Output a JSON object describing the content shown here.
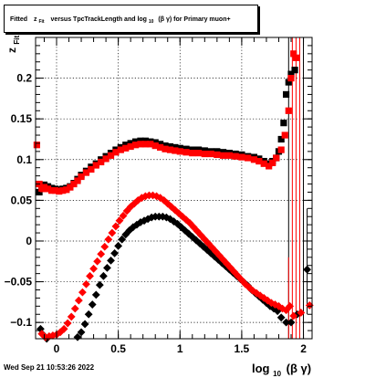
{
  "footer": {
    "datetime": "Wed Sep 21 10:53:26 2022"
  },
  "chart_data": {
    "type": "scatter",
    "title": {
      "prefix": "Fitted",
      "var": "z",
      "var_sub": "Fit",
      "middle": "versus TpcTrackLength and log",
      "log_sub": "10",
      "expr": "(β γ) for Primary muon+"
    },
    "ylabel": {
      "main": "z",
      "sub": "Fit"
    },
    "xlabel": {
      "main": "log",
      "sub": "10",
      "expr": "(β γ)"
    },
    "xlim": [
      -0.17,
      2.07
    ],
    "ylim": [
      -0.12,
      0.25
    ],
    "x_ticks": [
      {
        "value": 0,
        "label": "0"
      },
      {
        "value": 0.5,
        "label": "0.5"
      },
      {
        "value": 1,
        "label": "1"
      },
      {
        "value": 1.5,
        "label": "1.5"
      },
      {
        "value": 2,
        "label": "2"
      }
    ],
    "y_ticks": [
      {
        "value": -0.1,
        "label": "−0.1"
      },
      {
        "value": -0.05,
        "label": "−0.05"
      },
      {
        "value": 0,
        "label": "0"
      },
      {
        "value": 0.05,
        "label": "0.05"
      },
      {
        "value": 0.1,
        "label": "0.1"
      },
      {
        "value": 0.15,
        "label": "0.15"
      },
      {
        "value": 0.2,
        "label": "0.2"
      }
    ],
    "grid": true,
    "colors": {
      "black_series": "#000000",
      "red_series": "#ff0000"
    },
    "series": [
      {
        "color": "#000000",
        "marker": "square",
        "points": [
          [
            -0.14,
            0.06
          ],
          [
            -0.12,
            0.066
          ],
          [
            -0.1,
            0.069
          ],
          [
            -0.07,
            0.067
          ],
          [
            -0.04,
            0.065
          ],
          [
            -0.01,
            0.064
          ],
          [
            0.02,
            0.063
          ],
          [
            0.05,
            0.064
          ],
          [
            0.08,
            0.065
          ],
          [
            0.11,
            0.067
          ],
          [
            0.14,
            0.071
          ],
          [
            0.17,
            0.076
          ],
          [
            0.2,
            0.081
          ],
          [
            0.24,
            0.086
          ],
          [
            0.28,
            0.091
          ],
          [
            0.32,
            0.095
          ],
          [
            0.36,
            0.1
          ],
          [
            0.4,
            0.104
          ],
          [
            0.44,
            0.108
          ],
          [
            0.48,
            0.112
          ],
          [
            0.52,
            0.115
          ],
          [
            0.56,
            0.118
          ],
          [
            0.6,
            0.12
          ],
          [
            0.64,
            0.122
          ],
          [
            0.68,
            0.123
          ],
          [
            0.72,
            0.123
          ],
          [
            0.76,
            0.122
          ],
          [
            0.8,
            0.121
          ],
          [
            0.84,
            0.119
          ],
          [
            0.88,
            0.117
          ],
          [
            0.92,
            0.116
          ],
          [
            0.96,
            0.115
          ],
          [
            1.0,
            0.114
          ],
          [
            1.05,
            0.113
          ],
          [
            1.1,
            0.112
          ],
          [
            1.15,
            0.112
          ],
          [
            1.2,
            0.111
          ],
          [
            1.25,
            0.11
          ],
          [
            1.3,
            0.11
          ],
          [
            1.35,
            0.109
          ],
          [
            1.4,
            0.108
          ],
          [
            1.45,
            0.107
          ],
          [
            1.5,
            0.106
          ],
          [
            1.55,
            0.104
          ],
          [
            1.6,
            0.103
          ],
          [
            1.64,
            0.101
          ],
          [
            1.68,
            0.098
          ],
          [
            1.72,
            0.095
          ],
          [
            1.75,
            0.098
          ],
          [
            1.78,
            0.102
          ],
          [
            1.8,
            0.11
          ],
          [
            1.82,
            0.125
          ],
          [
            1.84,
            0.145
          ],
          [
            1.86,
            0.18
          ],
          [
            1.88,
            0.195
          ],
          [
            1.9,
            0.205
          ],
          [
            1.93,
            0.21
          ]
        ]
      },
      {
        "color": "#000000",
        "marker": "diamond",
        "points": [
          [
            -0.13,
            -0.108
          ],
          [
            -0.11,
            -0.115
          ],
          [
            -0.08,
            -0.12
          ],
          [
            0.17,
            -0.118
          ],
          [
            0.2,
            -0.112
          ],
          [
            0.23,
            -0.102
          ],
          [
            0.26,
            -0.09
          ],
          [
            0.29,
            -0.078
          ],
          [
            0.32,
            -0.066
          ],
          [
            0.35,
            -0.054
          ],
          [
            0.38,
            -0.043
          ],
          [
            0.41,
            -0.033
          ],
          [
            0.44,
            -0.024
          ],
          [
            0.47,
            -0.015
          ],
          [
            0.5,
            -0.006
          ],
          [
            0.53,
            0.002
          ],
          [
            0.56,
            0.008
          ],
          [
            0.59,
            0.013
          ],
          [
            0.62,
            0.017
          ],
          [
            0.65,
            0.02
          ],
          [
            0.68,
            0.023
          ],
          [
            0.71,
            0.025
          ],
          [
            0.74,
            0.027
          ],
          [
            0.77,
            0.029
          ],
          [
            0.8,
            0.03
          ],
          [
            0.83,
            0.03
          ],
          [
            0.86,
            0.03
          ],
          [
            0.89,
            0.029
          ],
          [
            0.92,
            0.027
          ],
          [
            0.95,
            0.024
          ],
          [
            0.98,
            0.021
          ],
          [
            1.01,
            0.017
          ],
          [
            1.04,
            0.013
          ],
          [
            1.07,
            0.009
          ],
          [
            1.1,
            0.005
          ],
          [
            1.13,
            0.001
          ],
          [
            1.16,
            -0.003
          ],
          [
            1.19,
            -0.007
          ],
          [
            1.22,
            -0.011
          ],
          [
            1.25,
            -0.015
          ],
          [
            1.28,
            -0.019
          ],
          [
            1.31,
            -0.023
          ],
          [
            1.34,
            -0.027
          ],
          [
            1.37,
            -0.031
          ],
          [
            1.4,
            -0.035
          ],
          [
            1.43,
            -0.039
          ],
          [
            1.46,
            -0.043
          ],
          [
            1.49,
            -0.047
          ],
          [
            1.52,
            -0.051
          ],
          [
            1.55,
            -0.055
          ],
          [
            1.58,
            -0.06
          ],
          [
            1.61,
            -0.064
          ],
          [
            1.64,
            -0.068
          ],
          [
            1.67,
            -0.072
          ],
          [
            1.7,
            -0.076
          ],
          [
            1.73,
            -0.08
          ],
          [
            1.76,
            -0.083
          ],
          [
            1.79,
            -0.086
          ],
          [
            1.82,
            -0.094
          ],
          [
            1.86,
            -0.1
          ],
          [
            1.9,
            -0.1
          ],
          [
            1.95,
            -0.09
          ],
          [
            2.03,
            -0.035
          ]
        ]
      },
      {
        "color": "#ff0000",
        "marker": "square",
        "points": [
          [
            -0.16,
            0.118
          ],
          [
            -0.14,
            0.07
          ],
          [
            -0.12,
            0.064
          ],
          [
            -0.1,
            0.066
          ],
          [
            -0.07,
            0.064
          ],
          [
            -0.04,
            0.062
          ],
          [
            -0.01,
            0.062
          ],
          [
            0.02,
            0.061
          ],
          [
            0.05,
            0.062
          ],
          [
            0.08,
            0.063
          ],
          [
            0.11,
            0.066
          ],
          [
            0.14,
            0.07
          ],
          [
            0.17,
            0.074
          ],
          [
            0.2,
            0.079
          ],
          [
            0.24,
            0.084
          ],
          [
            0.28,
            0.088
          ],
          [
            0.32,
            0.093
          ],
          [
            0.36,
            0.097
          ],
          [
            0.4,
            0.101
          ],
          [
            0.44,
            0.105
          ],
          [
            0.48,
            0.109
          ],
          [
            0.52,
            0.112
          ],
          [
            0.56,
            0.114
          ],
          [
            0.6,
            0.116
          ],
          [
            0.64,
            0.118
          ],
          [
            0.68,
            0.119
          ],
          [
            0.72,
            0.119
          ],
          [
            0.76,
            0.119
          ],
          [
            0.8,
            0.117
          ],
          [
            0.84,
            0.115
          ],
          [
            0.88,
            0.113
          ],
          [
            0.92,
            0.112
          ],
          [
            0.96,
            0.111
          ],
          [
            1.0,
            0.11
          ],
          [
            1.05,
            0.109
          ],
          [
            1.1,
            0.108
          ],
          [
            1.15,
            0.108
          ],
          [
            1.2,
            0.107
          ],
          [
            1.25,
            0.107
          ],
          [
            1.3,
            0.106
          ],
          [
            1.35,
            0.105
          ],
          [
            1.4,
            0.105
          ],
          [
            1.45,
            0.104
          ],
          [
            1.5,
            0.103
          ],
          [
            1.55,
            0.102
          ],
          [
            1.6,
            0.1
          ],
          [
            1.64,
            0.098
          ],
          [
            1.68,
            0.095
          ],
          [
            1.72,
            0.092
          ],
          [
            1.75,
            0.096
          ],
          [
            1.78,
            0.102
          ],
          [
            1.82,
            0.112
          ],
          [
            1.85,
            0.13
          ],
          [
            1.88,
            0.16
          ],
          [
            1.9,
            0.2
          ],
          [
            1.92,
            0.23
          ],
          [
            1.94,
            0.225
          ]
        ]
      },
      {
        "color": "#ff0000",
        "marker": "diamond",
        "points": [
          [
            -0.12,
            -0.114
          ],
          [
            -0.09,
            -0.118
          ],
          [
            -0.06,
            -0.117
          ],
          [
            -0.03,
            -0.116
          ],
          [
            0.0,
            -0.115
          ],
          [
            0.03,
            -0.112
          ],
          [
            0.06,
            -0.108
          ],
          [
            0.09,
            -0.101
          ],
          [
            0.12,
            -0.093
          ],
          [
            0.15,
            -0.083
          ],
          [
            0.18,
            -0.073
          ],
          [
            0.21,
            -0.063
          ],
          [
            0.24,
            -0.053
          ],
          [
            0.27,
            -0.043
          ],
          [
            0.3,
            -0.034
          ],
          [
            0.33,
            -0.025
          ],
          [
            0.36,
            -0.016
          ],
          [
            0.39,
            -0.007
          ],
          [
            0.42,
            0.002
          ],
          [
            0.45,
            0.01
          ],
          [
            0.48,
            0.018
          ],
          [
            0.51,
            0.025
          ],
          [
            0.54,
            0.031
          ],
          [
            0.57,
            0.037
          ],
          [
            0.6,
            0.042
          ],
          [
            0.63,
            0.046
          ],
          [
            0.66,
            0.05
          ],
          [
            0.69,
            0.053
          ],
          [
            0.72,
            0.055
          ],
          [
            0.75,
            0.056
          ],
          [
            0.78,
            0.056
          ],
          [
            0.81,
            0.055
          ],
          [
            0.84,
            0.053
          ],
          [
            0.87,
            0.05
          ],
          [
            0.9,
            0.046
          ],
          [
            0.93,
            0.042
          ],
          [
            0.96,
            0.038
          ],
          [
            0.99,
            0.034
          ],
          [
            1.02,
            0.03
          ],
          [
            1.05,
            0.026
          ],
          [
            1.08,
            0.022
          ],
          [
            1.11,
            0.017
          ],
          [
            1.14,
            0.012
          ],
          [
            1.17,
            0.007
          ],
          [
            1.2,
            0.002
          ],
          [
            1.23,
            -0.003
          ],
          [
            1.26,
            -0.008
          ],
          [
            1.29,
            -0.013
          ],
          [
            1.32,
            -0.018
          ],
          [
            1.35,
            -0.023
          ],
          [
            1.38,
            -0.028
          ],
          [
            1.41,
            -0.033
          ],
          [
            1.44,
            -0.038
          ],
          [
            1.47,
            -0.043
          ],
          [
            1.5,
            -0.048
          ],
          [
            1.53,
            -0.053
          ],
          [
            1.56,
            -0.057
          ],
          [
            1.59,
            -0.061
          ],
          [
            1.62,
            -0.064
          ],
          [
            1.65,
            -0.067
          ],
          [
            1.68,
            -0.07
          ],
          [
            1.71,
            -0.073
          ],
          [
            1.74,
            -0.076
          ],
          [
            1.77,
            -0.078
          ],
          [
            1.8,
            -0.08
          ],
          [
            1.83,
            -0.083
          ],
          [
            1.86,
            -0.085
          ],
          [
            1.89,
            -0.08
          ],
          [
            1.92,
            -0.092
          ],
          [
            1.98,
            -0.088
          ],
          [
            2.05,
            -0.079
          ]
        ]
      }
    ],
    "error_bars": [
      {
        "x": 1.88,
        "lo": -0.12,
        "hi": 0.25,
        "color": "#000000"
      },
      {
        "x": 1.91,
        "lo": -0.12,
        "hi": 0.25,
        "color": "#ff0000"
      },
      {
        "x": 1.94,
        "lo": -0.12,
        "hi": 0.25,
        "color": "#ff0000"
      },
      {
        "x": 1.97,
        "lo": -0.12,
        "hi": 0.25,
        "color": "#ff0000"
      },
      {
        "x": 2.0,
        "lo": -0.12,
        "hi": 0.25,
        "color": "#000000"
      },
      {
        "x": 2.03,
        "lo": -0.09,
        "hi": 0.04,
        "color": "#000000"
      },
      {
        "x": 1.88,
        "lo": -0.12,
        "hi": -0.02,
        "color": "#ff0000"
      }
    ]
  }
}
